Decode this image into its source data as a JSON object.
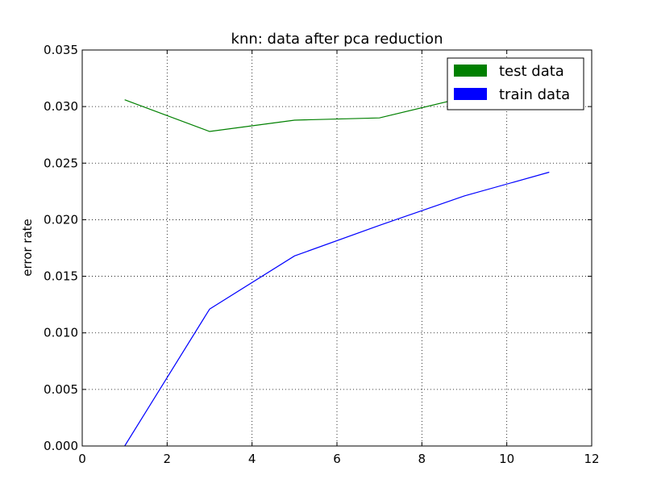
{
  "chart_data": {
    "type": "line",
    "title": "knn: data after pca reduction",
    "xlabel": "",
    "ylabel": "error rate",
    "xlim": [
      0,
      12
    ],
    "ylim": [
      0,
      0.035
    ],
    "xticks": [
      0,
      2,
      4,
      6,
      8,
      10,
      12
    ],
    "xtick_labels": [
      "0",
      "2",
      "4",
      "6",
      "8",
      "10",
      "12"
    ],
    "yticks": [
      0,
      0.005,
      0.01,
      0.015,
      0.02,
      0.025,
      0.03,
      0.035
    ],
    "ytick_labels": [
      "0.000",
      "0.005",
      "0.010",
      "0.015",
      "0.020",
      "0.025",
      "0.030",
      "0.035"
    ],
    "grid": true,
    "legend_position": "top-right",
    "x": [
      1,
      3,
      5,
      7,
      9,
      11
    ],
    "series": [
      {
        "name": "test data",
        "color": "#008000",
        "values": [
          0.0306,
          0.0278,
          0.0288,
          0.029,
          0.0308,
          0.0305
        ]
      },
      {
        "name": "train data",
        "color": "#0000ff",
        "values": [
          0.0,
          0.0121,
          0.0168,
          0.0195,
          0.0221,
          0.0242
        ]
      }
    ]
  }
}
